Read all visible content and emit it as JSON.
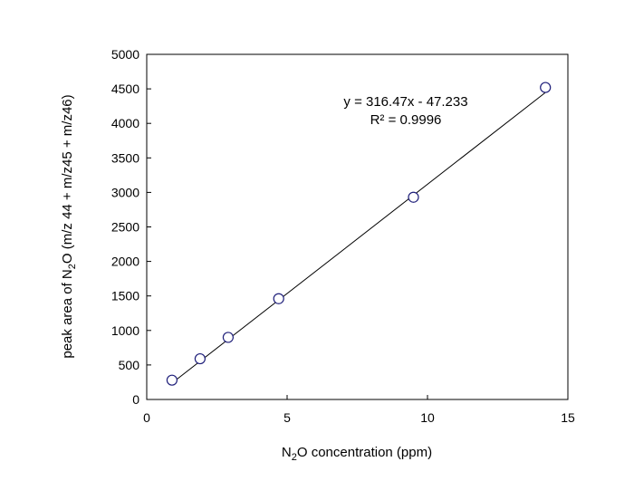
{
  "chart_data": {
    "type": "scatter",
    "title": "",
    "xlabel": {
      "prefix": "N",
      "sub": "2",
      "suffix": "O concentration (ppm)"
    },
    "ylabel": {
      "prefix": "peak area of N",
      "sub": "2",
      "suffix": "O (m/z 44 + m/z45 + m/z46)"
    },
    "xlim": [
      0,
      15
    ],
    "ylim": [
      0,
      5000
    ],
    "xticks": [
      0,
      5,
      10,
      15
    ],
    "yticks": [
      0,
      500,
      1000,
      1500,
      2000,
      2500,
      3000,
      3500,
      4000,
      4500,
      5000
    ],
    "grid": false,
    "legend": "none",
    "marker_color": "#1f1f7a",
    "line_color": "#000000",
    "series": [
      {
        "x": [
          0.9,
          1.9,
          2.9,
          4.7,
          9.5,
          14.2
        ],
        "y": [
          280,
          590,
          900,
          1460,
          2930,
          4520
        ]
      }
    ],
    "trendline": {
      "slope": 316.47,
      "intercept": -47.233,
      "x_range": [
        0.9,
        14.2
      ],
      "equation": "y = 316.47x - 47.233",
      "r_squared": "R² = 0.9996"
    }
  }
}
